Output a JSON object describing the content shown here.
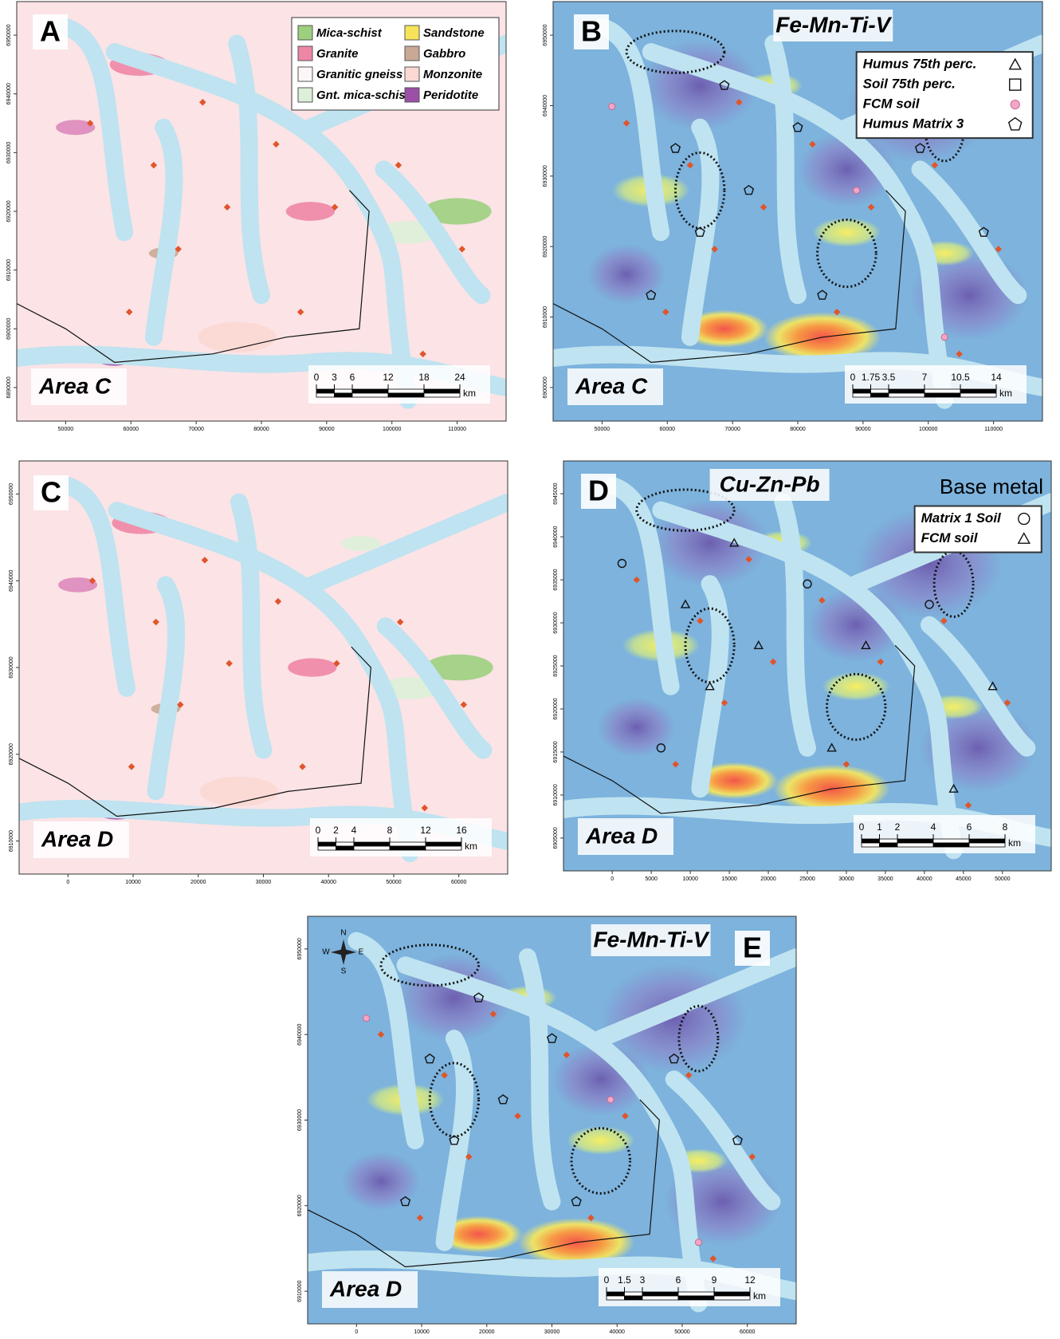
{
  "panels": [
    {
      "letter": "A",
      "area_label": "Area C",
      "legend": [
        {
          "label": "Mica-schist",
          "color": "#9ccf7e"
        },
        {
          "label": "Granite",
          "color": "#ee86a6"
        },
        {
          "label": "Granitic gneiss",
          "color": "#fdf6f6"
        },
        {
          "label": "Gnt. mica-schist",
          "color": "#dcefd8"
        },
        {
          "label": "Sandstone",
          "color": "#f7e35a"
        },
        {
          "label": "Gabbro",
          "color": "#caa896"
        },
        {
          "label": "Monzonite",
          "color": "#fbd8d4"
        },
        {
          "label": "Peridotite",
          "color": "#9b4fa6"
        }
      ],
      "scale": {
        "ticks": [
          0,
          3,
          6,
          12,
          18,
          24
        ],
        "unit": "km"
      },
      "x_ticks": [
        50000,
        60000,
        70000,
        80000,
        90000,
        100000,
        110000
      ],
      "y_ticks": [
        6890000,
        6900000,
        6910000,
        6920000,
        6930000,
        6940000,
        6950000
      ]
    },
    {
      "letter": "B",
      "area_label": "Area C",
      "title": "Fe-Mn-Ti-V",
      "legend": [
        {
          "label": "Humus 75th perc."
        },
        {
          "label": "Soil 75th perc."
        },
        {
          "label": "FCM  soil"
        },
        {
          "label": "Humus Matrix 3"
        }
      ],
      "scale": {
        "ticks": [
          0,
          1.75,
          3.5,
          7,
          10.5,
          14
        ],
        "unit": "km"
      },
      "x_ticks": [
        50000,
        60000,
        70000,
        80000,
        90000,
        100000,
        110000
      ],
      "y_ticks": [
        6900000,
        6910000,
        6920000,
        6930000,
        6940000,
        6950000
      ]
    },
    {
      "letter": "C",
      "area_label": "Area D",
      "scale": {
        "ticks": [
          0,
          2,
          4,
          8,
          12,
          16
        ],
        "unit": "km"
      },
      "x_ticks": [
        0,
        10000,
        20000,
        30000,
        40000,
        50000,
        60000
      ],
      "y_ticks": [
        6910000,
        6920000,
        6930000,
        6940000,
        6950000
      ]
    },
    {
      "letter": "D",
      "area_label": "Area D",
      "title": "Cu-Zn-Pb",
      "subtitle": "Base metal",
      "legend": [
        {
          "label": "Matrix 1 Soil"
        },
        {
          "label": "FCM  soil"
        }
      ],
      "scale": {
        "ticks": [
          0,
          1,
          2,
          4,
          6,
          8
        ],
        "unit": "km"
      },
      "x_ticks": [
        0,
        5000,
        10000,
        15000,
        20000,
        25000,
        30000,
        35000,
        40000,
        45000,
        50000
      ],
      "y_ticks": [
        6905000,
        6910000,
        6915000,
        6920000,
        6925000,
        6930000,
        6935000,
        6940000,
        6945000
      ]
    },
    {
      "letter": "E",
      "area_label": "Area D",
      "title": "Fe-Mn-Ti-V",
      "compass": [
        "N",
        "W",
        "E",
        "S"
      ],
      "scale": {
        "ticks": [
          0,
          1.5,
          3,
          6,
          9,
          12
        ],
        "unit": "km"
      },
      "x_ticks": [
        0,
        10000,
        20000,
        30000,
        40000,
        50000,
        60000
      ],
      "y_ticks": [
        6910000,
        6920000,
        6930000,
        6940000,
        6950000
      ]
    }
  ]
}
